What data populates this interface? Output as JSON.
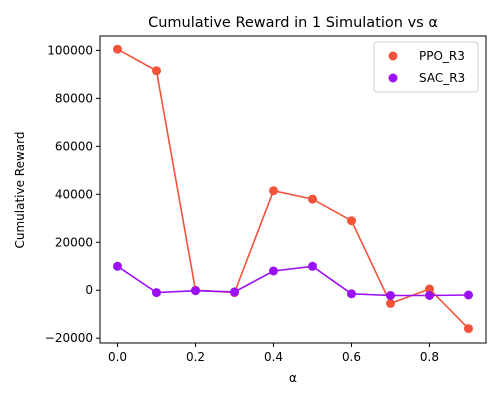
{
  "chart_data": {
    "type": "line",
    "title": "Cumulative Reward in 1 Simulation vs α",
    "xlabel": "α",
    "ylabel": "Cumulative Reward",
    "xlim": [
      -0.045,
      0.945
    ],
    "ylim": [
      -22000,
      106000
    ],
    "x_ticks": [
      0.0,
      0.2,
      0.4,
      0.6,
      0.8
    ],
    "x_tick_labels": [
      "0.0",
      "0.2",
      "0.4",
      "0.6",
      "0.8"
    ],
    "y_ticks": [
      -20000,
      0,
      20000,
      40000,
      60000,
      80000,
      100000
    ],
    "y_tick_labels": [
      "−20000",
      "0",
      "20000",
      "40000",
      "60000",
      "80000",
      "100000"
    ],
    "grid": false,
    "legend_position": "top-right",
    "x": [
      0.0,
      0.1,
      0.2,
      0.3,
      0.4,
      0.5,
      0.6,
      0.7,
      0.8,
      0.9
    ],
    "series": [
      {
        "name": "PPO_R3",
        "color": "#f2533a",
        "values": [
          100500,
          91500,
          0,
          -1000,
          41500,
          38000,
          29000,
          -5500,
          500,
          -16000
        ]
      },
      {
        "name": "SAC_R3",
        "color": "#9b10f5",
        "values": [
          10000,
          -1000,
          -200,
          -700,
          8000,
          10000,
          -1500,
          -2200,
          -2200,
          -2000
        ]
      }
    ]
  }
}
